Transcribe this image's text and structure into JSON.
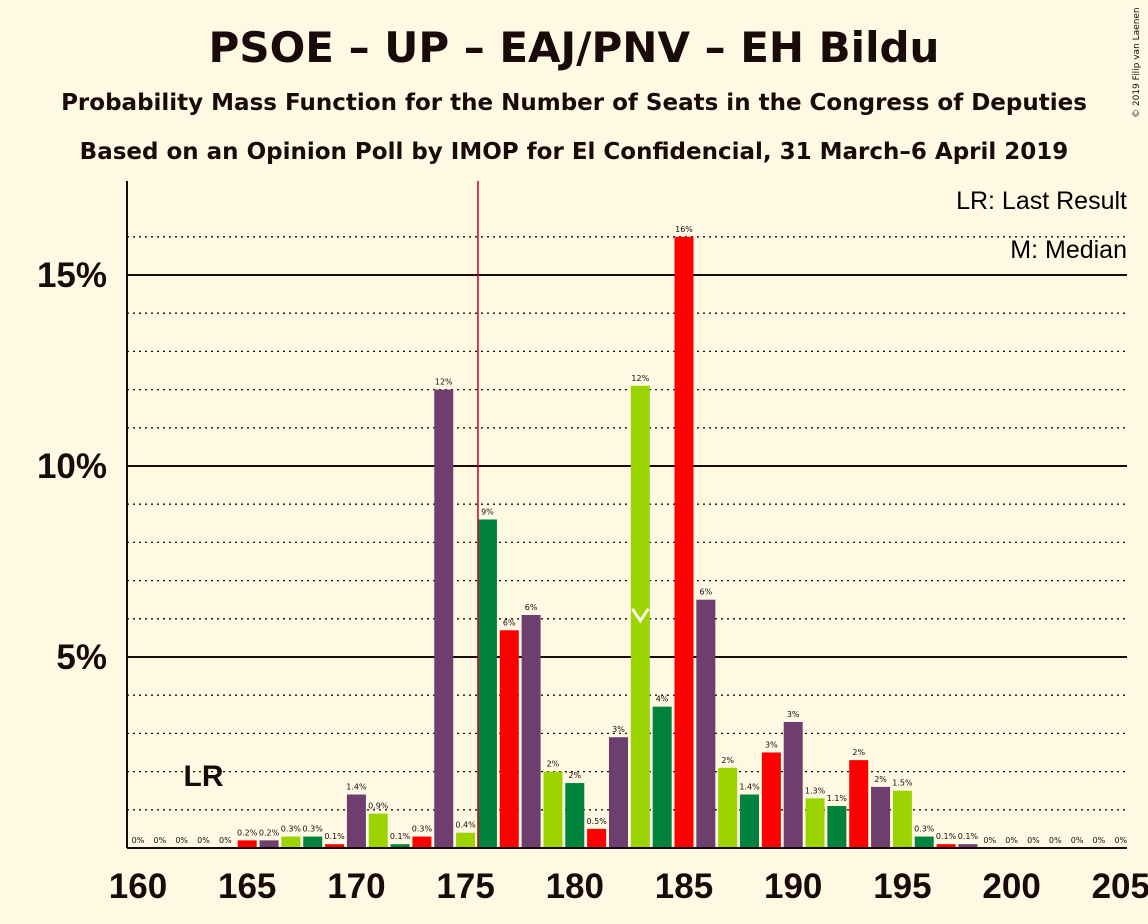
{
  "title": "PSOE – UP – EAJ/PNV – EH Bildu",
  "subtitle": "Probability Mass Function for the Number of Seats in the Congress of Deputies",
  "subtitle2": "Based on an Opinion Poll by IMOP for El Confidencial, 31 March–6 April 2019",
  "copyright": "© 2019 Filip van Laenen",
  "legend": {
    "last_result": "LR: Last Result",
    "median": "M: Median"
  },
  "colors": {
    "dark_green": "#00843D",
    "red": "#FF0000",
    "purple": "#6E3E6E",
    "light_green": "#9BD400",
    "background": "#FFF8E3",
    "lr_line": "#D2001E"
  },
  "chart_data": {
    "type": "bar",
    "x": [
      160,
      161,
      162,
      163,
      164,
      165,
      166,
      167,
      168,
      169,
      170,
      171,
      172,
      173,
      174,
      175,
      176,
      177,
      178,
      179,
      180,
      181,
      182,
      183,
      184,
      185,
      186,
      187,
      188,
      189,
      190,
      191,
      192,
      193,
      194,
      195,
      196,
      197,
      198,
      199,
      200,
      201,
      202,
      203,
      204,
      205
    ],
    "values": [
      0,
      0,
      0,
      0,
      0,
      0.2,
      0.2,
      0.3,
      0.3,
      0.1,
      1.4,
      0.9,
      0.1,
      0.3,
      12,
      0.4,
      8.6,
      5.7,
      6.1,
      2.0,
      1.7,
      0.5,
      2.9,
      12.1,
      3.7,
      16,
      6.5,
      2.1,
      1.4,
      2.5,
      3.3,
      1.3,
      1.1,
      2.3,
      1.6,
      1.5,
      0.3,
      0.1,
      0.1,
      0,
      0,
      0,
      0,
      0,
      0,
      0
    ],
    "labels": [
      "0%",
      "0%",
      "0%",
      "0%",
      "0%",
      "0.2%",
      "0.2%",
      "0.3%",
      "0.3%",
      "0.1%",
      "1.4%",
      "0.9%",
      "0.1%",
      "0.3%",
      "12%",
      "0.4%",
      "9%",
      "6%",
      "6%",
      "2%",
      "2%",
      "0.5%",
      "3%",
      "12%",
      "4%",
      "16%",
      "6%",
      "2%",
      "1.4%",
      "3%",
      "3%",
      "1.3%",
      "1.1%",
      "2%",
      "2%",
      "1.5%",
      "0.3%",
      "0.1%",
      "0.1%",
      "0%",
      "0%",
      "0%",
      "0%",
      "0%",
      "0%",
      "0%"
    ],
    "color_cycle": [
      "dark_green",
      "red",
      "purple",
      "light_green"
    ],
    "xlim": [
      160,
      205
    ],
    "ylim": [
      0,
      17.5
    ],
    "x_ticks": [
      160,
      165,
      170,
      175,
      180,
      185,
      190,
      195,
      200,
      205
    ],
    "y_ticks": [
      {
        "value": 5,
        "label": "5%"
      },
      {
        "value": 10,
        "label": "10%"
      },
      {
        "value": 15,
        "label": "15%"
      }
    ],
    "minor_grid": [
      1,
      2,
      3,
      4,
      6,
      7,
      8,
      9,
      11,
      12,
      13,
      14,
      16
    ],
    "last_result_x": 163,
    "last_result_label": "LR",
    "majority_x": 176,
    "median_x": 183
  }
}
